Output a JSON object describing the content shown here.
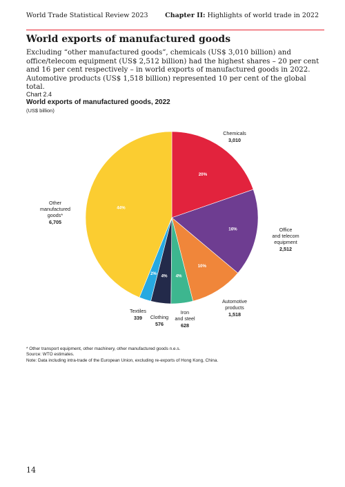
{
  "header": {
    "left": "World Trade Statistical Review 2023",
    "right_bold": "Chapter II:",
    "right_rest": "Highlights of world trade in 2022"
  },
  "section_title": "World exports of manufactured goods",
  "intro": "Excluding “other manufactured goods”, chemicals (US$ 3,010 billion) and office/telecom equipment (US$ 2,512 billion) had the highest shares – 20 per cent and 16 per cent respectively – in world exports of manufactured goods in 2022. Automotive products (US$ 1,518 billion) represented 10 per cent of the global total.",
  "chart_data": {
    "type": "pie",
    "number": "Chart 2.4",
    "title": "World exports of manufactured goods, 2022",
    "unit": "(US$ billion)",
    "slices": [
      {
        "key": "chemicals",
        "label_lines": [
          "Chemicals"
        ],
        "value": 3010,
        "value_label": "3,010",
        "percent_label": "20%",
        "color": "#e2233d"
      },
      {
        "key": "office",
        "label_lines": [
          "Office",
          "and telecom",
          "equipment"
        ],
        "value": 2512,
        "value_label": "2,512",
        "percent_label": "16%",
        "color": "#6e3d91"
      },
      {
        "key": "automotive",
        "label_lines": [
          "Automotive",
          "products"
        ],
        "value": 1518,
        "value_label": "1,518",
        "percent_label": "10%",
        "color": "#f0863a"
      },
      {
        "key": "iron",
        "label_lines": [
          "Iron",
          "and steel"
        ],
        "value": 628,
        "value_label": "628",
        "percent_label": "4%",
        "color": "#3db68f"
      },
      {
        "key": "clothing",
        "label_lines": [
          "Clothing"
        ],
        "value": 576,
        "value_label": "576",
        "percent_label": "4%",
        "color": "#232a4a"
      },
      {
        "key": "textiles",
        "label_lines": [
          "Textiles"
        ],
        "value": 339,
        "value_label": "339",
        "percent_label": "2%",
        "color": "#27a9e1"
      },
      {
        "key": "other",
        "label_lines": [
          "Other",
          "manufactured",
          "goods*"
        ],
        "value": 6705,
        "value_label": "6,705",
        "percent_label": "44%",
        "color": "#fbcd31"
      }
    ]
  },
  "footnotes": {
    "note1": "* Other transport equipment, other machinery, other manufactured goods n.e.s.",
    "source": "Source: WTO estimates.",
    "note2": "Note: Data including intra-trade of the European Union, excluding re-exports of Hong Kong, China."
  },
  "page_number": "14"
}
